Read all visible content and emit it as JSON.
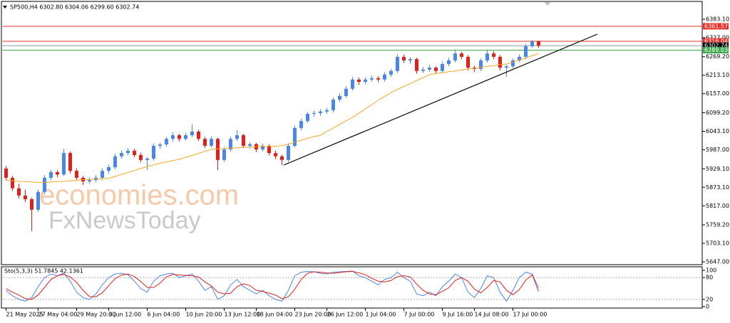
{
  "chart_data": [
    {
      "type": "candlestick",
      "title": "SP500,H4  6302.80 6304.06 6299.60 6302.74",
      "watermark": [
        "economies.com",
        "FxNewsToday"
      ],
      "up_color": "#4a86e8",
      "down_color": "#e0201b",
      "ma_color": "#f5a623",
      "xlim": [
        -0.5,
        108.5
      ],
      "xticks": [
        {
          "value": 0,
          "label": "21 May 2025"
        },
        {
          "value": 5,
          "label": "27 May 04:00"
        },
        {
          "value": 11,
          "label": "29 May 20:00"
        },
        {
          "value": 16,
          "label": "3 Jun 12:00"
        },
        {
          "value": 22,
          "label": "6 Jun 04:00"
        },
        {
          "value": 28,
          "label": "10 Jun 20:00"
        },
        {
          "value": 34,
          "label": "13 Jun 12:00"
        },
        {
          "value": 39,
          "label": "18 Jun 04:00"
        },
        {
          "value": 45,
          "label": "23 Jun 20:00"
        },
        {
          "value": 50,
          "label": "26 Jun 12:00"
        },
        {
          "value": 56,
          "label": "1 Jul 04:00"
        },
        {
          "value": 62,
          "label": "7 Jul 00:00"
        },
        {
          "value": 68,
          "label": "9 Jul 16:00"
        },
        {
          "value": 73,
          "label": "14 Jul 08:00"
        },
        {
          "value": 79,
          "label": "17 Jul 00:00"
        }
      ],
      "ylim": [
        5638.4,
        6441.3
      ],
      "yticks": [
        {
          "value": 6383.1,
          "label": "6383.10"
        },
        {
          "value": 6327,
          "label": "6327.00"
        },
        {
          "value": 6269.2,
          "label": "6269.20"
        },
        {
          "value": 6213.1,
          "label": "6213.10"
        },
        {
          "value": 6157,
          "label": "6157.00"
        },
        {
          "value": 6099.2,
          "label": "6099.20"
        },
        {
          "value": 6043.1,
          "label": "6043.10"
        },
        {
          "value": 5987,
          "label": "5987.00"
        },
        {
          "value": 5929.1,
          "label": "5929.10"
        },
        {
          "value": 5873.1,
          "label": "5873.10"
        },
        {
          "value": 5817,
          "label": "5817.00"
        },
        {
          "value": 5759.2,
          "label": "5759.20"
        },
        {
          "value": 5703.1,
          "label": "5703.10"
        },
        {
          "value": 5647,
          "label": "5647.00"
        }
      ],
      "levels": [
        {
          "value": 6361.57,
          "color": "#e8312a"
        },
        {
          "value": 6316.04,
          "color": "#e8312a"
        },
        {
          "value": 6302.74,
          "color": "#000000"
        },
        {
          "value": 6289.03,
          "color": "#3aa84b"
        }
      ],
      "candles": [
        [
          5930,
          5938,
          5895,
          5902
        ],
        [
          5902,
          5908,
          5862,
          5870
        ],
        [
          5870,
          5884,
          5840,
          5848
        ],
        [
          5848,
          5866,
          5828,
          5837
        ],
        [
          5837,
          5842,
          5740,
          5805
        ],
        [
          5805,
          5866,
          5798,
          5859
        ],
        [
          5859,
          5910,
          5852,
          5902
        ],
        [
          5902,
          5926,
          5895,
          5919
        ],
        [
          5919,
          5925,
          5904,
          5912
        ],
        [
          5912,
          5990,
          5908,
          5977
        ],
        [
          5977,
          5982,
          5915,
          5923
        ],
        [
          5923,
          5930,
          5895,
          5902
        ],
        [
          5902,
          5908,
          5880,
          5891
        ],
        [
          5891,
          5903,
          5884,
          5895
        ],
        [
          5895,
          5910,
          5888,
          5902
        ],
        [
          5902,
          5930,
          5896,
          5923
        ],
        [
          5923,
          5942,
          5915,
          5934
        ],
        [
          5934,
          5975,
          5928,
          5967
        ],
        [
          5967,
          5985,
          5960,
          5977
        ],
        [
          5977,
          5992,
          5970,
          5984
        ],
        [
          5984,
          5990,
          5964,
          5971
        ],
        [
          5971,
          5978,
          5948,
          5956
        ],
        [
          5956,
          5964,
          5926,
          5960
        ],
        [
          5960,
          6006,
          5954,
          5999
        ],
        [
          5999,
          6008,
          5990,
          6003
        ],
        [
          6003,
          6026,
          5996,
          6020
        ],
        [
          6020,
          6040,
          6012,
          6031
        ],
        [
          6031,
          6036,
          6012,
          6020
        ],
        [
          6020,
          6038,
          6015,
          6031
        ],
        [
          6031,
          6064,
          6025,
          6042
        ],
        [
          6042,
          6048,
          6014,
          6020
        ],
        [
          6020,
          6026,
          5992,
          5999
        ],
        [
          5999,
          6028,
          5994,
          6020
        ],
        [
          6020,
          6024,
          5925,
          5956
        ],
        [
          5956,
          5995,
          5950,
          5988
        ],
        [
          5988,
          6026,
          5982,
          6020
        ],
        [
          6020,
          6046,
          6014,
          6031
        ],
        [
          6031,
          6036,
          5992,
          5999
        ],
        [
          5999,
          6010,
          5990,
          6004
        ],
        [
          6004,
          6008,
          5980,
          5988
        ],
        [
          5988,
          6006,
          5982,
          5999
        ],
        [
          5999,
          6004,
          5970,
          5977
        ],
        [
          5977,
          5984,
          5958,
          5967
        ],
        [
          5967,
          5972,
          5940,
          5956
        ],
        [
          5956,
          6006,
          5950,
          5999
        ],
        [
          5999,
          6060,
          5994,
          6053
        ],
        [
          6053,
          6082,
          6046,
          6074
        ],
        [
          6074,
          6102,
          6068,
          6096
        ],
        [
          6096,
          6106,
          6088,
          6098
        ],
        [
          6098,
          6110,
          6090,
          6103
        ],
        [
          6103,
          6114,
          6096,
          6107
        ],
        [
          6107,
          6146,
          6100,
          6139
        ],
        [
          6139,
          6158,
          6132,
          6150
        ],
        [
          6150,
          6180,
          6144,
          6172
        ],
        [
          6172,
          6208,
          6166,
          6200
        ],
        [
          6200,
          6206,
          6184,
          6193
        ],
        [
          6193,
          6206,
          6186,
          6200
        ],
        [
          6200,
          6212,
          6194,
          6204
        ],
        [
          6204,
          6210,
          6192,
          6200
        ],
        [
          6200,
          6222,
          6194,
          6215
        ],
        [
          6215,
          6232,
          6208,
          6226
        ],
        [
          6226,
          6276,
          6220,
          6269
        ],
        [
          6269,
          6276,
          6250,
          6258
        ],
        [
          6258,
          6268,
          6248,
          6262
        ],
        [
          6262,
          6266,
          6218,
          6226
        ],
        [
          6226,
          6238,
          6220,
          6230
        ],
        [
          6230,
          6244,
          6224,
          6236
        ],
        [
          6236,
          6240,
          6218,
          6226
        ],
        [
          6226,
          6254,
          6220,
          6247
        ],
        [
          6247,
          6266,
          6240,
          6258
        ],
        [
          6258,
          6288,
          6252,
          6279
        ],
        [
          6279,
          6284,
          6262,
          6269
        ],
        [
          6269,
          6274,
          6228,
          6236
        ],
        [
          6236,
          6242,
          6222,
          6232
        ],
        [
          6232,
          6264,
          6226,
          6258
        ],
        [
          6258,
          6290,
          6252,
          6279
        ],
        [
          6279,
          6286,
          6262,
          6269
        ],
        [
          6269,
          6274,
          6228,
          6236
        ],
        [
          6236,
          6244,
          6208,
          6240
        ],
        [
          6240,
          6264,
          6234,
          6258
        ],
        [
          6258,
          6276,
          6252,
          6269
        ],
        [
          6269,
          6308,
          6262,
          6301
        ],
        [
          6301,
          6320,
          6296,
          6316
        ],
        [
          6316,
          6318,
          6296,
          6302.74
        ]
      ],
      "ma_values": [
        5895,
        5893,
        5891,
        5890,
        5889,
        5888,
        5888,
        5889,
        5890,
        5891,
        5893,
        5895,
        5896,
        5897,
        5898,
        5899,
        5900,
        5906,
        5912,
        5918,
        5924,
        5930,
        5936,
        5941,
        5946,
        5950,
        5954,
        5958,
        5964,
        5970,
        5976,
        5982,
        5988,
        5990,
        5991,
        5992,
        5993,
        5994,
        5995,
        5996,
        5997,
        5997,
        5998,
        5999,
        6004,
        6010,
        6016,
        6022,
        6027,
        6031,
        6042,
        6053,
        6064,
        6075,
        6085,
        6098,
        6111,
        6124,
        6137,
        6149,
        6161,
        6170,
        6179,
        6188,
        6197,
        6206,
        6215,
        6218,
        6221,
        6224,
        6226,
        6229,
        6232,
        6234,
        6237,
        6240,
        6242,
        6245,
        6247,
        6253,
        6259,
        6266,
        6272,
        6279
      ]
    },
    {
      "type": "line",
      "title": "Sto(5,3,3) 51.7845 42.1361",
      "ylim": [
        0,
        100
      ],
      "yticks": [
        100,
        80,
        20,
        0
      ],
      "levels": [
        80,
        20
      ],
      "series": [
        {
          "color": "#4a86e8",
          "values": [
            45,
            30,
            20,
            15,
            25,
            55,
            80,
            90,
            85,
            92,
            70,
            40,
            25,
            20,
            35,
            60,
            80,
            90,
            92,
            88,
            70,
            50,
            40,
            70,
            85,
            90,
            92,
            80,
            85,
            90,
            70,
            45,
            55,
            20,
            30,
            60,
            75,
            55,
            45,
            35,
            45,
            30,
            20,
            15,
            45,
            85,
            95,
            97,
            96,
            92,
            90,
            95,
            96,
            97,
            98,
            85,
            80,
            70,
            60,
            75,
            80,
            95,
            80,
            70,
            35,
            30,
            40,
            30,
            55,
            70,
            90,
            80,
            40,
            25,
            50,
            85,
            80,
            40,
            15,
            45,
            80,
            95,
            90,
            51.7845
          ]
        },
        {
          "color": "#e0201b",
          "values": [
            50,
            40,
            32,
            22,
            20,
            32,
            53,
            75,
            85,
            89,
            82,
            67,
            45,
            28,
            27,
            38,
            58,
            77,
            87,
            90,
            83,
            69,
            53,
            53,
            65,
            82,
            89,
            87,
            86,
            85,
            82,
            68,
            57,
            40,
            35,
            37,
            55,
            63,
            58,
            45,
            42,
            37,
            32,
            22,
            27,
            48,
            75,
            92,
            96,
            95,
            93,
            92,
            94,
            96,
            97,
            93,
            88,
            78,
            70,
            68,
            72,
            83,
            85,
            82,
            62,
            45,
            35,
            33,
            42,
            52,
            72,
            80,
            70,
            48,
            38,
            53,
            72,
            68,
            45,
            33,
            47,
            73,
            88,
            42.1361
          ]
        }
      ]
    }
  ]
}
